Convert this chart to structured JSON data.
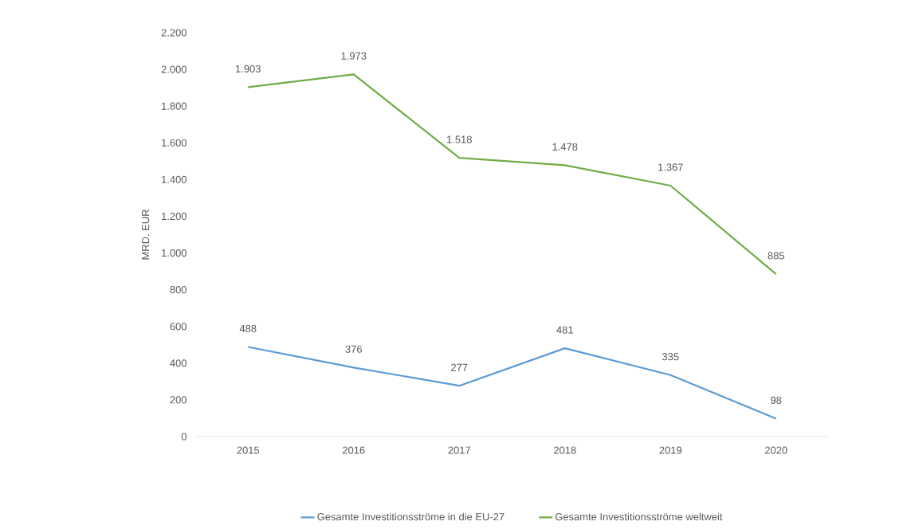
{
  "chart_data": {
    "type": "line",
    "ylabel": "MRD. EUR",
    "categories": [
      "2015",
      "2016",
      "2017",
      "2018",
      "2019",
      "2020"
    ],
    "series": [
      {
        "name": "Gesamte Investitionsströme in die EU-27",
        "color": "#5b9bd5",
        "values": [
          488,
          376,
          277,
          481,
          335,
          98
        ],
        "value_labels": [
          "488",
          "376",
          "277",
          "481",
          "335",
          "98"
        ]
      },
      {
        "name": "Gesamte Investitionsströme weltweit",
        "color": "#70ad47",
        "values": [
          1903,
          1973,
          1518,
          1478,
          1367,
          885
        ],
        "value_labels": [
          "1.903",
          "1.973",
          "1.518",
          "1.478",
          "1.367",
          "885"
        ]
      }
    ],
    "ylim": [
      0,
      2200
    ],
    "yticks": [
      0,
      200,
      400,
      600,
      800,
      {
        "value": 1000,
        "label": "1.000"
      },
      {
        "value": 1200,
        "label": "1.200"
      },
      {
        "value": 1400,
        "label": "1.400"
      },
      {
        "value": 1600,
        "label": "1.600"
      },
      {
        "value": 1800,
        "label": "1.800"
      },
      {
        "value": 2000,
        "label": "2.000"
      },
      {
        "value": 2200,
        "label": "2.200"
      }
    ],
    "grid": false,
    "legend": "bottom"
  }
}
